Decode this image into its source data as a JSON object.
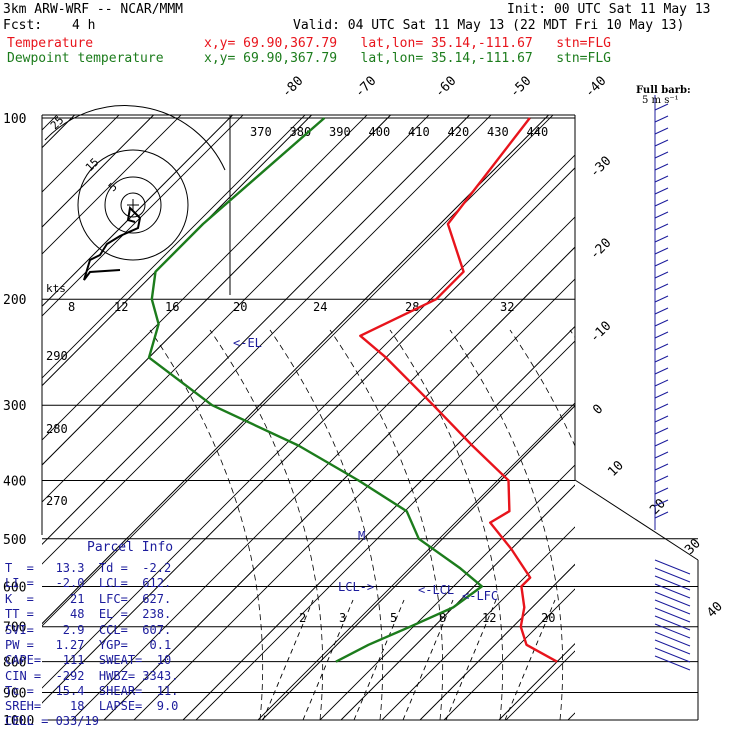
{
  "header": {
    "model": "3km ARW-WRF -- NCAR/MMM",
    "init": "Init: 00 UTC Sat 11 May 13",
    "fcst_label": "Fcst:",
    "fcst_value": "4 h",
    "valid": "Valid: 04 UTC Sat 11 May 13 (22 MDT Fri 10 May 13)"
  },
  "legend": [
    {
      "name": "Temperature",
      "info": "x,y= 69.90,367.79   lat,lon= 35.14,-111.67   stn=FLG",
      "color": "#e8141c"
    },
    {
      "name": "Dewpoint temperature",
      "info": "x,y= 69.90,367.79   lat,lon= 35.14,-111.67   stn=FLG",
      "color": "#1c7c1c"
    }
  ],
  "barb_legend": {
    "title": "Full barb:",
    "value": "5 m s⁻¹"
  },
  "colors": {
    "temperature": "#e8141c",
    "dewpoint": "#1c7c1c",
    "parcel": "#1c1c9c",
    "grid": "#000000",
    "mixing": "#000000"
  },
  "chart_data": {
    "type": "line",
    "title": "",
    "y_scale": "log-pressure",
    "ylim": [
      1000,
      100
    ],
    "pressure_labels": [
      100,
      200,
      300,
      400,
      500,
      600,
      700,
      800,
      900,
      1000
    ],
    "isotherm_labels": [
      -80,
      -70,
      -60,
      -50,
      -40,
      -30,
      -20,
      -10,
      0,
      10,
      20,
      30,
      40
    ],
    "theta_labels": [
      {
        "value": 370
      },
      {
        "value": 380
      },
      {
        "value": 390
      },
      {
        "value": 400
      },
      {
        "value": 410
      },
      {
        "value": 420
      },
      {
        "value": 430
      },
      {
        "value": 440
      }
    ],
    "adiabat_labels": [
      {
        "value": "290"
      },
      {
        "value": "280"
      },
      {
        "value": "270"
      }
    ],
    "mixing_ratio_labels": [
      "2",
      "3",
      "5",
      "8",
      "12",
      "20"
    ],
    "inset_wind_labels": [
      "8",
      "12",
      "16",
      "20",
      "24",
      "28",
      "32"
    ],
    "hodograph": {
      "units": "kts",
      "rings": [
        "5",
        "15",
        "25"
      ]
    },
    "annotations": [
      {
        "text": "<-EL",
        "p": 238
      },
      {
        "text": "LCL->",
        "p": 612
      },
      {
        "text": "<-LCL",
        "p": 612
      },
      {
        "text": "<-LFC",
        "p": 627
      },
      {
        "text": "M",
        "p": 500
      }
    ],
    "series": [
      {
        "name": "Temperature",
        "points": [
          [
            100,
            -52
          ],
          [
            150,
            -49
          ],
          [
            180,
            -41
          ],
          [
            200,
            -41
          ],
          [
            230,
            -46
          ],
          [
            250,
            -40
          ],
          [
            300,
            -28
          ],
          [
            350,
            -18
          ],
          [
            400,
            -9
          ],
          [
            450,
            -5
          ],
          [
            470,
            -6
          ],
          [
            520,
            0
          ],
          [
            580,
            6
          ],
          [
            600,
            6
          ],
          [
            650,
            9
          ],
          [
            700,
            11
          ],
          [
            750,
            14
          ],
          [
            800,
            20
          ]
        ]
      },
      {
        "name": "Dewpoint temperature",
        "points": [
          [
            100,
            -78
          ],
          [
            150,
            -80
          ],
          [
            180,
            -80
          ],
          [
            200,
            -77
          ],
          [
            220,
            -73
          ],
          [
            250,
            -70
          ],
          [
            300,
            -56
          ],
          [
            350,
            -40
          ],
          [
            400,
            -28
          ],
          [
            450,
            -18
          ],
          [
            500,
            -13
          ],
          [
            560,
            -4
          ],
          [
            600,
            1
          ],
          [
            650,
            0
          ],
          [
            700,
            -3
          ],
          [
            750,
            -6
          ],
          [
            800,
            -8
          ]
        ]
      }
    ]
  },
  "parcel_info": {
    "title": "Parcel Info",
    "rows": [
      "T  =   13.3  Td =  -2.2",
      "LI =   -2.0  LCL=  612.",
      "K  =     21  LFC=  627.",
      "TT =     48  EL =  238.",
      "SVI=    2.9  CCL=  607.",
      "PW =   1.27  YGP=   0.1",
      "CAPE=   111  SWEAT=  10",
      "CIN =  -292  HWBZ= 3343.",
      "Tc =   15.4  SHEAR=  11.",
      "SREH=    18  LAPSE=  9.0",
      "CELL = 033/19"
    ]
  }
}
